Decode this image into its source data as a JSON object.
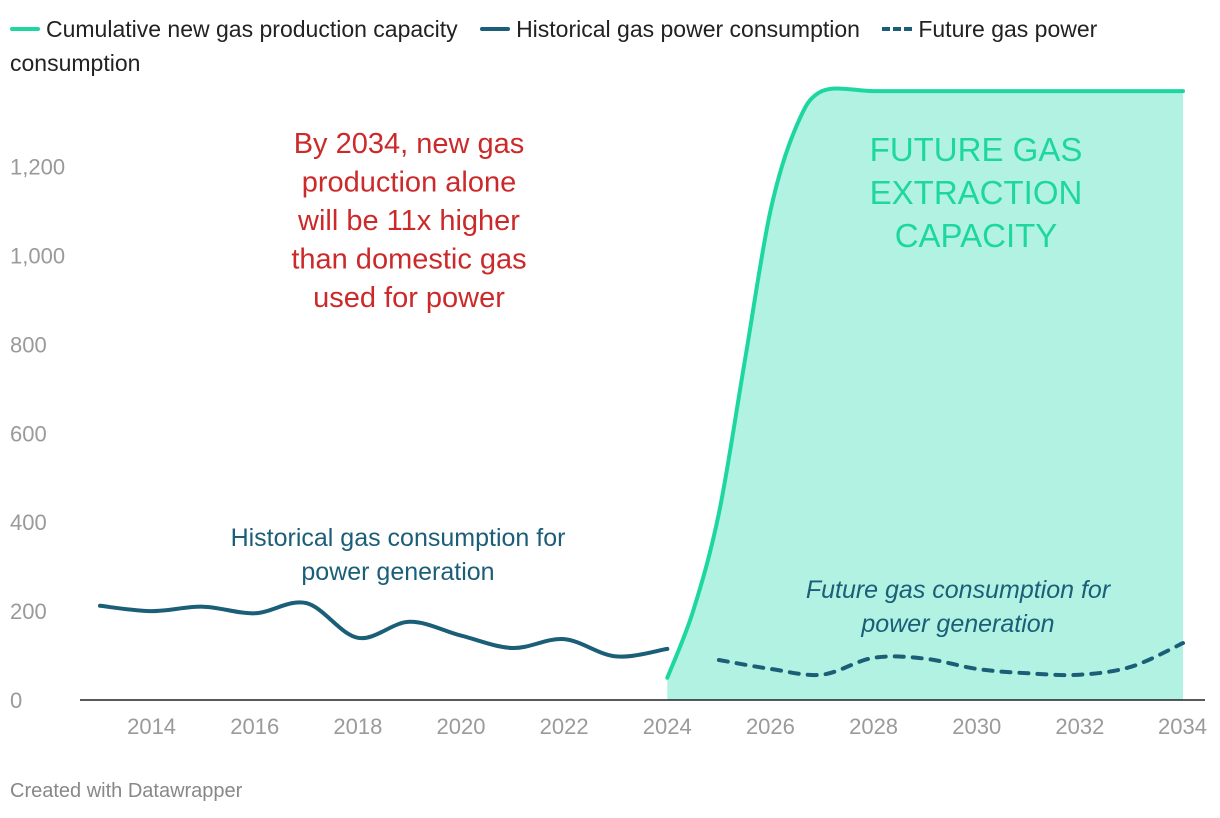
{
  "legend": [
    {
      "label": "Cumulative new gas production capacity",
      "color": "#1ed7a0",
      "style": "solid"
    },
    {
      "label": "Historical gas power consumption",
      "color": "#1b5e78",
      "style": "solid"
    },
    {
      "label": "Future gas power consumption",
      "color": "#1b5e78",
      "style": "dashed"
    }
  ],
  "chart_data": {
    "type": "line",
    "title": "",
    "xlabel": "",
    "ylabel": "",
    "xlim": [
      2013,
      2034
    ],
    "ylim": [
      0,
      1350
    ],
    "x_ticks": [
      "2014",
      "2016",
      "2018",
      "2020",
      "2022",
      "2024",
      "2026",
      "2028",
      "2030",
      "2032",
      "2034"
    ],
    "y_ticks": [
      "0",
      "200",
      "400",
      "600",
      "800",
      "1,000",
      "1,200"
    ],
    "series": [
      {
        "name": "Cumulative new gas production capacity",
        "style": "area",
        "color": "#1ed7a0",
        "fill": "#b2f2e2",
        "x": [
          2024,
          2024.5,
          2025,
          2025.5,
          2026,
          2026.5,
          2027,
          2028,
          2029,
          2030,
          2031,
          2032,
          2033,
          2034
        ],
        "values": [
          50,
          200,
          420,
          760,
          1100,
          1290,
          1370,
          1370,
          1370,
          1370,
          1370,
          1370,
          1370,
          1370
        ]
      },
      {
        "name": "Historical gas power consumption",
        "style": "solid",
        "color": "#1b5e78",
        "x": [
          2013,
          2014,
          2015,
          2016,
          2017,
          2018,
          2019,
          2020,
          2021,
          2022,
          2023,
          2024
        ],
        "values": [
          212,
          200,
          210,
          195,
          218,
          140,
          176,
          145,
          117,
          137,
          98,
          115
        ]
      },
      {
        "name": "Future gas power consumption",
        "style": "dashed",
        "color": "#1b5e78",
        "x": [
          2025,
          2026,
          2027,
          2028,
          2029,
          2030,
          2031,
          2032,
          2033,
          2034
        ],
        "values": [
          90,
          70,
          57,
          95,
          93,
          70,
          60,
          57,
          75,
          128
        ]
      }
    ],
    "annotations": {
      "red": [
        "By 2034, new gas",
        "production alone",
        "will be 11x higher",
        "than domestic gas",
        "used for power"
      ],
      "green": [
        "FUTURE GAS",
        "EXTRACTION",
        "CAPACITY"
      ],
      "historical": [
        "Historical gas consumption for",
        "power generation"
      ],
      "future": [
        "Future gas consumption for",
        "power generation"
      ]
    }
  },
  "footer": "Created with Datawrapper"
}
